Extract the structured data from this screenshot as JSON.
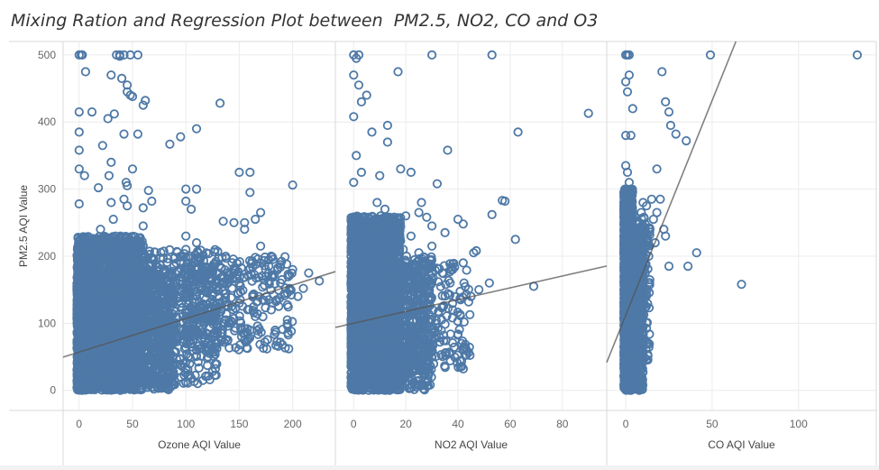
{
  "title": "Mixing Ration and Regression Plot between  PM2.5, NO2, CO and O3",
  "colors": {
    "marker": "#4e79a7",
    "trend": "#555555",
    "grid": "#ececec",
    "divider": "#d9d9d9"
  },
  "chart_data": {
    "type": "scatter",
    "title": "Mixing Ration and Regression Plot between  PM2.5, NO2, CO and O3",
    "ylabel": "PM2.5 AQI Value",
    "ylim": [
      -30,
      520
    ],
    "yticks": [
      0,
      100,
      200,
      300,
      400,
      500
    ],
    "grid": true,
    "legend": "none",
    "panels": [
      {
        "xlabel": "Ozone AQI Value",
        "xlim": [
          -15,
          240
        ],
        "xticks": [
          0,
          50,
          100,
          150,
          200
        ],
        "trendline": {
          "slope": 0.5,
          "intercept": 57
        },
        "points": [
          [
            0,
            500
          ],
          [
            2,
            500
          ],
          [
            35,
            500
          ],
          [
            38,
            500
          ],
          [
            42,
            500
          ],
          [
            48,
            500
          ],
          [
            55,
            500
          ],
          [
            6,
            475
          ],
          [
            30,
            470
          ],
          [
            40,
            465
          ],
          [
            45,
            445
          ],
          [
            48,
            440
          ],
          [
            62,
            432
          ],
          [
            132,
            428
          ],
          [
            0,
            415
          ],
          [
            33,
            412
          ],
          [
            27,
            405
          ],
          [
            110,
            390
          ],
          [
            95,
            378
          ],
          [
            85,
            367
          ],
          [
            42,
            382
          ],
          [
            55,
            382
          ],
          [
            0,
            385
          ],
          [
            0,
            358
          ],
          [
            0,
            330
          ],
          [
            5,
            320
          ],
          [
            28,
            320
          ],
          [
            44,
            310
          ],
          [
            45,
            305
          ],
          [
            150,
            325
          ],
          [
            160,
            325
          ],
          [
            200,
            306
          ],
          [
            18,
            302
          ],
          [
            100,
            300
          ],
          [
            110,
            300
          ],
          [
            65,
            298
          ],
          [
            160,
            295
          ],
          [
            42,
            285
          ],
          [
            30,
            280
          ],
          [
            68,
            282
          ],
          [
            100,
            282
          ],
          [
            0,
            278
          ],
          [
            45,
            275
          ],
          [
            60,
            272
          ],
          [
            105,
            270
          ],
          [
            170,
            265
          ],
          [
            135,
            252
          ],
          [
            145,
            250
          ],
          [
            155,
            250
          ],
          [
            165,
            255
          ],
          [
            155,
            240
          ],
          [
            20,
            240
          ],
          [
            32,
            255
          ],
          [
            60,
            245
          ],
          [
            100,
            230
          ],
          [
            110,
            220
          ],
          [
            170,
            215
          ],
          [
            180,
            200
          ],
          [
            200,
            180
          ],
          [
            215,
            175
          ],
          [
            225,
            163
          ],
          [
            190,
            165
          ],
          [
            150,
            160
          ],
          [
            130,
            150
          ],
          [
            120,
            145
          ],
          [
            90,
            160
          ],
          [
            75,
            170
          ],
          [
            170,
            190
          ],
          [
            100,
            210
          ],
          [
            60,
            215
          ],
          [
            185,
            135
          ],
          [
            195,
            105
          ],
          [
            165,
            110
          ],
          [
            140,
            100
          ],
          [
            120,
            120
          ],
          [
            160,
            90
          ],
          [
            130,
            70
          ],
          [
            155,
            75
          ],
          [
            110,
            90
          ],
          [
            100,
            80
          ],
          [
            180,
            120
          ],
          [
            205,
            140
          ],
          [
            210,
            152
          ],
          [
            195,
            145
          ],
          [
            150,
            130
          ],
          [
            140,
            165
          ],
          [
            110,
            140
          ],
          [
            175,
            170
          ],
          [
            125,
            175
          ],
          [
            105,
            185
          ],
          [
            95,
            38
          ],
          [
            100,
            42
          ],
          [
            125,
            28
          ],
          [
            110,
            60
          ],
          [
            95,
            100
          ],
          [
            85,
            130
          ],
          [
            80,
            180
          ],
          [
            75,
            110
          ],
          [
            70,
            120
          ],
          [
            65,
            90
          ],
          [
            3,
            500
          ],
          [
            38,
            498
          ],
          [
            50,
            438
          ],
          [
            60,
            425
          ],
          [
            45,
            455
          ],
          [
            12,
            415
          ],
          [
            22,
            365
          ],
          [
            30,
            340
          ],
          [
            50,
            330
          ]
        ],
        "dense": [
          {
            "x": [
              -2,
              60
            ],
            "y": [
              0,
              230
            ],
            "n": 2200
          },
          {
            "x": [
              0,
              90
            ],
            "y": [
              0,
              180
            ],
            "n": 1400
          },
          {
            "x": [
              40,
              130
            ],
            "y": [
              10,
              210
            ],
            "n": 700
          },
          {
            "x": [
              100,
              200
            ],
            "y": [
              60,
              200
            ],
            "n": 350
          }
        ]
      },
      {
        "xlabel": "NO2 AQI Value",
        "xlim": [
          -7,
          97
        ],
        "xticks": [
          0,
          20,
          40,
          60,
          80
        ],
        "trendline": {
          "slope": 0.88,
          "intercept": 100
        },
        "points": [
          [
            0,
            500
          ],
          [
            2,
            500
          ],
          [
            1,
            495
          ],
          [
            30,
            500
          ],
          [
            53,
            500
          ],
          [
            0,
            470
          ],
          [
            2,
            455
          ],
          [
            5,
            440
          ],
          [
            17,
            475
          ],
          [
            90,
            413
          ],
          [
            3,
            430
          ],
          [
            0,
            408
          ],
          [
            7,
            385
          ],
          [
            13,
            395
          ],
          [
            63,
            385
          ],
          [
            36,
            358
          ],
          [
            13,
            370
          ],
          [
            1,
            350
          ],
          [
            3,
            325
          ],
          [
            0,
            310
          ],
          [
            18,
            330
          ],
          [
            22,
            325
          ],
          [
            32,
            308
          ],
          [
            10,
            320
          ],
          [
            57,
            283
          ],
          [
            58,
            282
          ],
          [
            26,
            280
          ],
          [
            25,
            265
          ],
          [
            20,
            260
          ],
          [
            28,
            258
          ],
          [
            40,
            255
          ],
          [
            42,
            248
          ],
          [
            15,
            250
          ],
          [
            53,
            262
          ],
          [
            30,
            245
          ],
          [
            62,
            225
          ],
          [
            35,
            235
          ],
          [
            47,
            208
          ],
          [
            46,
            205
          ],
          [
            42,
            190
          ],
          [
            38,
            180
          ],
          [
            34,
            175
          ],
          [
            30,
            185
          ],
          [
            37,
            160
          ],
          [
            69,
            155
          ],
          [
            52,
            160
          ],
          [
            48,
            150
          ],
          [
            45,
            140
          ],
          [
            41,
            135
          ],
          [
            38,
            120
          ],
          [
            30,
            215
          ],
          [
            22,
            230
          ],
          [
            17,
            250
          ],
          [
            12,
            270
          ],
          [
            9,
            280
          ],
          [
            25,
            205
          ],
          [
            19,
            210
          ],
          [
            27,
            190
          ]
        ],
        "dense": [
          {
            "x": [
              -1,
              18
            ],
            "y": [
              0,
              260
            ],
            "n": 2300
          },
          {
            "x": [
              0,
              30
            ],
            "y": [
              0,
              200
            ],
            "n": 1100
          },
          {
            "x": [
              10,
              45
            ],
            "y": [
              30,
              190
            ],
            "n": 350
          }
        ]
      },
      {
        "xlabel": "CO AQI Value",
        "xlim": [
          -11,
          145
        ],
        "xticks": [
          0,
          50,
          100
        ],
        "trendline": {
          "slope": 6.4,
          "intercept": 112
        },
        "points": [
          [
            0,
            500
          ],
          [
            1,
            500
          ],
          [
            2,
            500
          ],
          [
            49,
            500
          ],
          [
            134,
            500
          ],
          [
            2,
            470
          ],
          [
            0,
            460
          ],
          [
            21,
            475
          ],
          [
            23,
            430
          ],
          [
            1,
            445
          ],
          [
            4,
            420
          ],
          [
            25,
            415
          ],
          [
            0,
            380
          ],
          [
            3,
            380
          ],
          [
            26,
            395
          ],
          [
            29,
            382
          ],
          [
            35,
            372
          ],
          [
            0,
            335
          ],
          [
            1,
            325
          ],
          [
            2,
            310
          ],
          [
            3,
            300
          ],
          [
            18,
            330
          ],
          [
            15,
            285
          ],
          [
            20,
            285
          ],
          [
            18,
            265
          ],
          [
            16,
            255
          ],
          [
            22,
            240
          ],
          [
            23,
            230
          ],
          [
            12,
            275
          ],
          [
            10,
            280
          ],
          [
            9,
            265
          ],
          [
            8,
            250
          ],
          [
            41,
            205
          ],
          [
            36,
            185
          ],
          [
            67,
            158
          ],
          [
            25,
            185
          ],
          [
            13,
            215
          ],
          [
            11,
            198
          ],
          [
            10,
            175
          ],
          [
            9,
            160
          ],
          [
            8,
            145
          ],
          [
            8,
            130
          ],
          [
            9,
            110
          ],
          [
            7,
            95
          ],
          [
            6,
            80
          ],
          [
            5,
            70
          ],
          [
            4,
            55
          ],
          [
            5,
            45
          ],
          [
            3,
            35
          ],
          [
            3,
            20
          ],
          [
            4,
            12
          ],
          [
            2,
            5
          ],
          [
            6,
            235
          ],
          [
            7,
            220
          ],
          [
            14,
            240
          ],
          [
            17,
            220
          ]
        ],
        "dense": [
          {
            "x": [
              -1,
              4
            ],
            "y": [
              0,
              300
            ],
            "n": 2100
          },
          {
            "x": [
              0,
              10
            ],
            "y": [
              0,
              240
            ],
            "n": 900
          },
          {
            "x": [
              3,
              14
            ],
            "y": [
              40,
              260
            ],
            "n": 250
          }
        ]
      }
    ]
  }
}
